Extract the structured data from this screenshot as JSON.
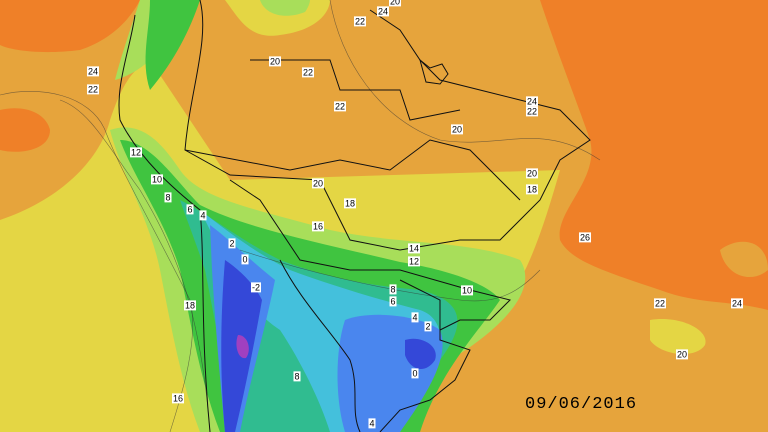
{
  "map": {
    "date": "09/06/2016",
    "contour_labels": [
      24,
      22,
      20,
      24,
      22,
      20,
      22,
      22,
      24,
      22,
      20,
      12,
      10,
      8,
      6,
      4,
      20,
      18,
      16,
      20,
      18,
      26,
      2,
      0,
      -2,
      14,
      12,
      10,
      8,
      6,
      18,
      22,
      24,
      4,
      2,
      20,
      8,
      0,
      16,
      4
    ]
  }
}
